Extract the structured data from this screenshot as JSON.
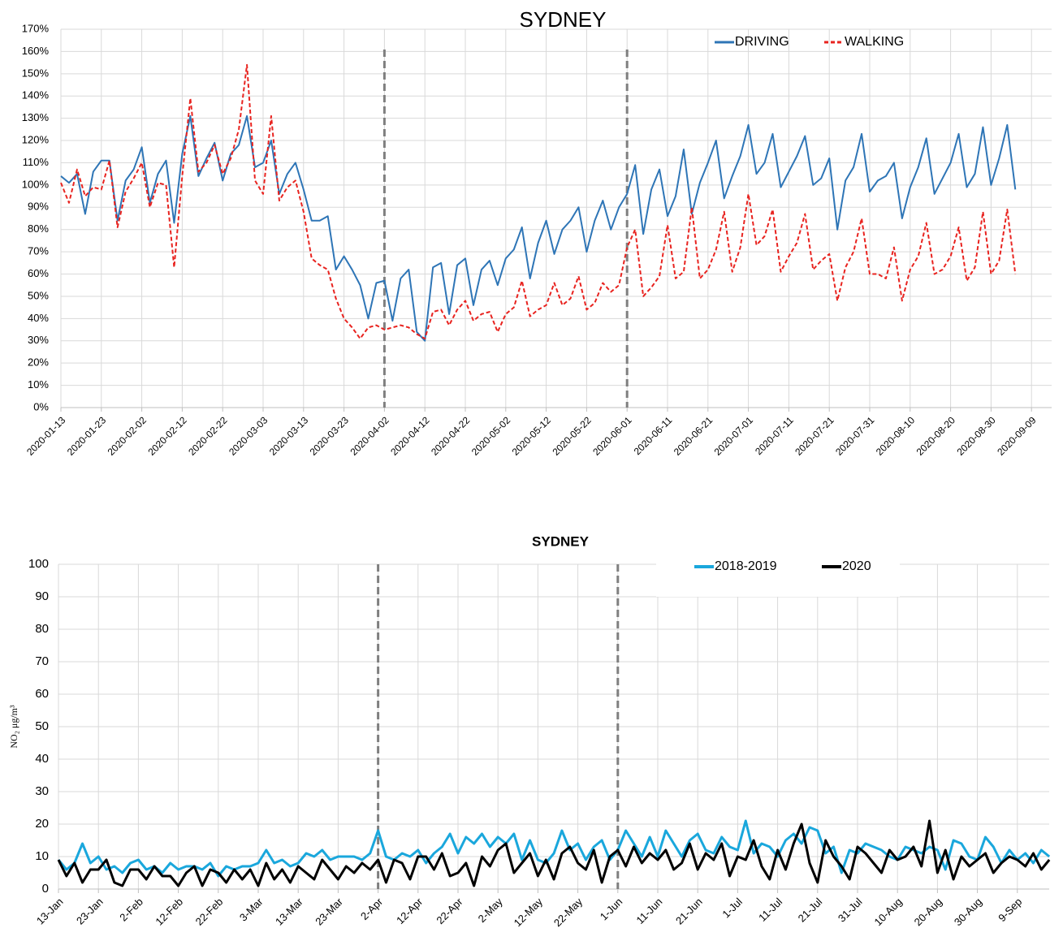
{
  "chart_data": [
    {
      "type": "line",
      "title": "SYDNEY",
      "categories": [
        "2020-01-13",
        null,
        null,
        null,
        null,
        "2020-01-23",
        null,
        null,
        null,
        null,
        "2020-02-02",
        null,
        null,
        null,
        null,
        "2020-02-12",
        null,
        null,
        null,
        null,
        "2020-02-22",
        null,
        null,
        null,
        null,
        "2020-03-03",
        null,
        null,
        null,
        null,
        "2020-03-13",
        null,
        null,
        null,
        null,
        "2020-03-23",
        null,
        null,
        null,
        null,
        "2020-04-02",
        null,
        null,
        null,
        null,
        "2020-04-12",
        null,
        null,
        null,
        null,
        "2020-04-22",
        null,
        null,
        null,
        null,
        "2020-05-02",
        null,
        null,
        null,
        null,
        "2020-05-12",
        null,
        null,
        null,
        null,
        "2020-05-22",
        null,
        null,
        null,
        null,
        "2020-06-01",
        null,
        null,
        null,
        null,
        "2020-06-11",
        null,
        null,
        null,
        null,
        "2020-06-21",
        null,
        null,
        null,
        null,
        "2020-07-01",
        null,
        null,
        null,
        null,
        "2020-07-11",
        null,
        null,
        null,
        null,
        "2020-07-21",
        null,
        null,
        null,
        null,
        "2020-07-31",
        null,
        null,
        null,
        null,
        "2020-08-10",
        null,
        null,
        null,
        null,
        "2020-08-20",
        null,
        null,
        null,
        null,
        "2020-08-30",
        null,
        null,
        null,
        null,
        "2020-09-09"
      ],
      "series": [
        {
          "name": "DRIVING",
          "color": "#2e75b6",
          "dash": false,
          "values": [
            104,
            101,
            105,
            87,
            106,
            111,
            111,
            84,
            102,
            107,
            117,
            92,
            105,
            111,
            83,
            114,
            131,
            104,
            112,
            119,
            102,
            114,
            118,
            131,
            108,
            110,
            120,
            96,
            105,
            110,
            98,
            84,
            84,
            86,
            62,
            68,
            62,
            55,
            40,
            56,
            57,
            39,
            58,
            62,
            34,
            30,
            63,
            65,
            42,
            64,
            67,
            46,
            62,
            66,
            55,
            67,
            71,
            81,
            58,
            74,
            84,
            69,
            80,
            84,
            90,
            70,
            84,
            93,
            80,
            90,
            96,
            109,
            78,
            98,
            107,
            86,
            95,
            116,
            87,
            101,
            110,
            120,
            94,
            104,
            113,
            127,
            105,
            110,
            123,
            99,
            106,
            113,
            122,
            100,
            103,
            112,
            80,
            102,
            108,
            123,
            97,
            102,
            104,
            110,
            85,
            99,
            108,
            121,
            96,
            103,
            110,
            123,
            99,
            105,
            126,
            100,
            112,
            127,
            98,
            null,
            null
          ]
        },
        {
          "name": "WALKING",
          "color": "#e8231f",
          "dash": true,
          "values": [
            101,
            92,
            107,
            95,
            99,
            98,
            111,
            81,
            97,
            103,
            110,
            90,
            101,
            100,
            63,
            104,
            139,
            106,
            110,
            118,
            105,
            112,
            125,
            154,
            102,
            96,
            131,
            93,
            99,
            102,
            88,
            67,
            64,
            62,
            49,
            40,
            36,
            31,
            36,
            37,
            35,
            36,
            37,
            36,
            33,
            31,
            43,
            44,
            37,
            44,
            48,
            39,
            42,
            43,
            34,
            42,
            45,
            57,
            41,
            44,
            46,
            56,
            46,
            49,
            59,
            44,
            47,
            56,
            52,
            55,
            72,
            80,
            50,
            54,
            59,
            82,
            58,
            61,
            90,
            58,
            62,
            71,
            88,
            61,
            72,
            96,
            73,
            77,
            89,
            61,
            68,
            74,
            87,
            62,
            66,
            69,
            48,
            63,
            70,
            85,
            60,
            60,
            58,
            72,
            48,
            62,
            68,
            83,
            60,
            62,
            68,
            81,
            57,
            63,
            88,
            60,
            66,
            89,
            60,
            null,
            null
          ]
        }
      ],
      "ylim": [
        0,
        170
      ],
      "yticks": [
        {
          "value": 0,
          "label": "0%"
        },
        {
          "value": 10,
          "label": "10%"
        },
        {
          "value": 20,
          "label": "20%"
        },
        {
          "value": 30,
          "label": "30%"
        },
        {
          "value": 40,
          "label": "40%"
        },
        {
          "value": 50,
          "label": "50%"
        },
        {
          "value": 60,
          "label": "60%"
        },
        {
          "value": 70,
          "label": "70%"
        },
        {
          "value": 80,
          "label": "80%"
        },
        {
          "value": 90,
          "label": "90%"
        },
        {
          "value": 100,
          "label": "100%"
        },
        {
          "value": 110,
          "label": "110%"
        },
        {
          "value": 120,
          "label": "120%"
        },
        {
          "value": 130,
          "label": "130%"
        },
        {
          "value": 140,
          "label": "140%"
        },
        {
          "value": 150,
          "label": "150%"
        },
        {
          "value": 160,
          "label": "160%"
        },
        {
          "value": 170,
          "label": "170%"
        }
      ],
      "vlines": [
        "2020-04-02",
        "2020-06-01"
      ],
      "grid": true,
      "legend": "top-right"
    },
    {
      "type": "line",
      "title": "SYDNEY",
      "ylabel": "NO₂ μg/m³",
      "categories": [
        "13-Jan",
        null,
        null,
        null,
        null,
        "23-Jan",
        null,
        null,
        null,
        null,
        "2-Feb",
        null,
        null,
        null,
        null,
        "12-Feb",
        null,
        null,
        null,
        null,
        "22-Feb",
        null,
        null,
        null,
        null,
        "3-Mar",
        null,
        null,
        null,
        null,
        "13-Mar",
        null,
        null,
        null,
        null,
        "23-Mar",
        null,
        null,
        null,
        null,
        "2-Apr",
        null,
        null,
        null,
        null,
        "12-Apr",
        null,
        null,
        null,
        null,
        "22-Apr",
        null,
        null,
        null,
        null,
        "2-May",
        null,
        null,
        null,
        null,
        "12-May",
        null,
        null,
        null,
        null,
        "22-May",
        null,
        null,
        null,
        null,
        "1-Jun",
        null,
        null,
        null,
        null,
        "11-Jun",
        null,
        null,
        null,
        null,
        "21-Jun",
        null,
        null,
        null,
        null,
        "1-Jul",
        null,
        null,
        null,
        null,
        "11-Jul",
        null,
        null,
        null,
        null,
        "21-Jul",
        null,
        null,
        null,
        null,
        "31-Jul",
        null,
        null,
        null,
        null,
        "10-Aug",
        null,
        null,
        null,
        null,
        "20-Aug",
        null,
        null,
        null,
        null,
        "30-Aug",
        null,
        null,
        null,
        null,
        "9-Sep",
        null,
        null,
        null,
        null
      ],
      "series": [
        {
          "name": "2018-2019",
          "color": "#1aa7dc",
          "dash": false,
          "values": [
            9,
            6,
            8,
            14,
            8,
            10,
            6,
            7,
            5,
            8,
            9,
            6,
            7,
            5,
            8,
            6,
            7,
            7,
            6,
            8,
            4,
            7,
            6,
            7,
            7,
            8,
            12,
            8,
            9,
            7,
            8,
            11,
            10,
            12,
            9,
            10,
            10,
            10,
            9,
            11,
            18,
            10,
            9,
            11,
            10,
            12,
            8,
            11,
            13,
            17,
            11,
            16,
            14,
            17,
            13,
            16,
            14,
            17,
            9,
            15,
            9,
            8,
            11,
            18,
            12,
            14,
            9,
            13,
            15,
            9,
            12,
            18,
            14,
            10,
            16,
            10,
            18,
            14,
            10,
            15,
            17,
            12,
            11,
            16,
            13,
            12,
            21,
            11,
            14,
            13,
            10,
            15,
            17,
            14,
            19,
            18,
            11,
            13,
            5,
            12,
            11,
            14,
            13,
            12,
            10,
            9,
            13,
            12,
            11,
            13,
            12,
            6,
            15,
            14,
            10,
            9,
            16,
            13,
            8,
            12,
            9,
            11,
            8,
            12,
            10
          ]
        },
        {
          "name": "2020",
          "color": "#000000",
          "dash": false,
          "values": [
            9,
            4,
            8,
            2,
            6,
            6,
            9,
            2,
            1,
            6,
            6,
            3,
            7,
            4,
            4,
            1,
            5,
            7,
            1,
            6,
            5,
            2,
            6,
            3,
            6,
            1,
            8,
            3,
            6,
            2,
            7,
            5,
            3,
            9,
            6,
            3,
            7,
            5,
            8,
            6,
            9,
            2,
            9,
            8,
            3,
            10,
            10,
            6,
            11,
            4,
            5,
            8,
            1,
            10,
            7,
            12,
            14,
            5,
            8,
            11,
            4,
            9,
            3,
            11,
            13,
            8,
            6,
            12,
            2,
            10,
            12,
            7,
            13,
            8,
            11,
            9,
            12,
            6,
            8,
            14,
            6,
            11,
            9,
            14,
            4,
            10,
            9,
            15,
            7,
            3,
            12,
            6,
            14,
            20,
            8,
            2,
            15,
            10,
            7,
            3,
            13,
            11,
            8,
            5,
            12,
            9,
            10,
            13,
            7,
            21,
            5,
            12,
            3,
            10,
            7,
            9,
            11,
            5,
            8,
            10,
            9,
            7,
            11,
            6,
            9
          ]
        }
      ],
      "ylim": [
        0,
        100
      ],
      "yticks": [
        0,
        10,
        20,
        30,
        40,
        50,
        60,
        70,
        80,
        90,
        100
      ],
      "vlines": [
        "2-Apr",
        "1-Jun"
      ],
      "grid": true,
      "legend": "top-right"
    }
  ]
}
